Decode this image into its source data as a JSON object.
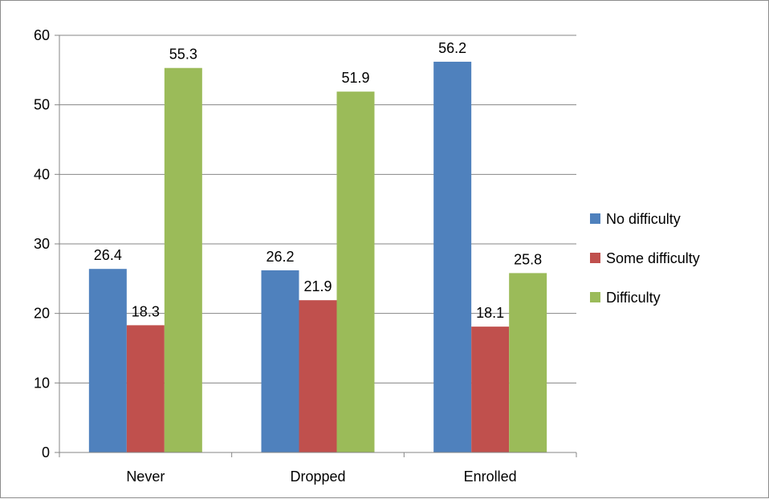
{
  "chart_data": {
    "type": "bar",
    "title": "",
    "xlabel": "",
    "ylabel": "",
    "categories": [
      "Never",
      "Dropped",
      "Enrolled"
    ],
    "series": [
      {
        "name": "No difficulty",
        "color": "#4f81bd",
        "values": [
          26.4,
          26.2,
          56.2
        ]
      },
      {
        "name": "Some difficulty",
        "color": "#c0504d",
        "values": [
          18.3,
          21.9,
          18.1
        ]
      },
      {
        "name": "Difficulty",
        "color": "#9bbb59",
        "values": [
          55.3,
          51.9,
          25.8
        ]
      }
    ],
    "ylim": [
      0,
      60
    ],
    "yticks": [
      0,
      10,
      20,
      30,
      40,
      50,
      60
    ],
    "grid": true,
    "legend_position": "right"
  }
}
